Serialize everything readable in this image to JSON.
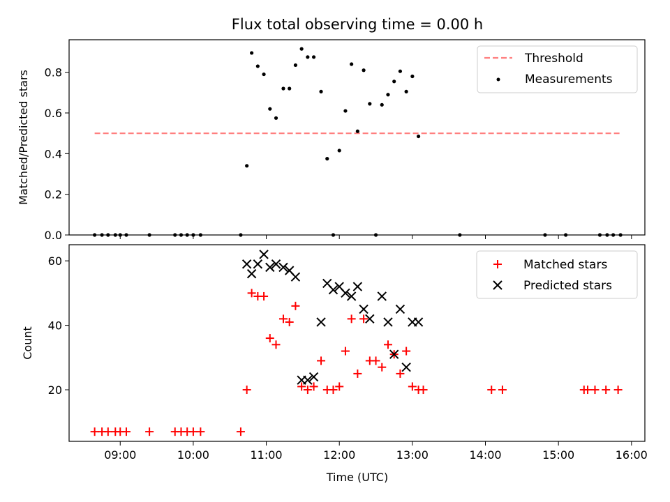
{
  "chart_data": [
    {
      "type": "scatter",
      "title": "Flux total observing time = 0.00 h",
      "xlabel": "",
      "ylabel": "Matched/Predicted stars",
      "xlim": [
        "08:18",
        "16:11"
      ],
      "ylim": [
        0,
        0.96
      ],
      "yticks": [
        0.0,
        0.2,
        0.4,
        0.6,
        0.8
      ],
      "ytick_labels": [
        "0.0",
        "0.2",
        "0.4",
        "0.6",
        "0.8"
      ],
      "legend": {
        "position": "top-right",
        "entries": [
          {
            "label": "Threshold",
            "marker": "dashed-line",
            "color": "#ff7f7f"
          },
          {
            "label": "Measurements",
            "marker": "dot",
            "color": "#000000"
          }
        ]
      },
      "threshold": {
        "name": "Threshold",
        "value": 0.5,
        "x_start": "08:39",
        "x_end": "15:51",
        "color": "#ff7f7f"
      },
      "series": [
        {
          "name": "Measurements",
          "color": "#000000",
          "x": [
            "08:39",
            "08:45",
            "08:50",
            "08:56",
            "09:00",
            "09:05",
            "09:24",
            "09:45",
            "09:50",
            "09:55",
            "10:00",
            "10:06",
            "10:39",
            "10:44",
            "10:48",
            "10:53",
            "10:58",
            "11:03",
            "11:08",
            "11:14",
            "11:19",
            "11:24",
            "11:29",
            "11:34",
            "11:39",
            "11:45",
            "11:50",
            "11:55",
            "12:00",
            "12:05",
            "12:10",
            "12:15",
            "12:20",
            "12:25",
            "12:30",
            "12:35",
            "12:40",
            "12:45",
            "12:50",
            "12:55",
            "13:00",
            "13:05",
            "13:39",
            "14:49",
            "15:06",
            "15:34",
            "15:40",
            "15:45",
            "15:51"
          ],
          "y": [
            0,
            0,
            0,
            0,
            0,
            0,
            0,
            0,
            0,
            0,
            0,
            0,
            0,
            0.34,
            0.895,
            0.83,
            0.79,
            0.62,
            0.575,
            0.72,
            0.72,
            0.835,
            0.915,
            0.875,
            0.875,
            0.705,
            0.375,
            0,
            0.415,
            0.61,
            0.84,
            0.51,
            0.81,
            0.645,
            0,
            0.64,
            0.69,
            0.755,
            0.805,
            0.705,
            0.78,
            0.485,
            0,
            0,
            0,
            0,
            0,
            0,
            0
          ]
        }
      ]
    },
    {
      "type": "scatter",
      "title": "",
      "xlabel": "Time (UTC)",
      "ylabel": "Count",
      "xlim": [
        "08:18",
        "16:11"
      ],
      "ylim": [
        4,
        65
      ],
      "yticks": [
        20,
        40,
        60
      ],
      "ytick_labels": [
        "20",
        "40",
        "60"
      ],
      "xticks": [
        "09:00",
        "10:00",
        "11:00",
        "12:00",
        "13:00",
        "14:00",
        "15:00",
        "16:00"
      ],
      "xtick_labels": [
        "09:00",
        "10:00",
        "11:00",
        "12:00",
        "13:00",
        "14:00",
        "15:00",
        "16:00"
      ],
      "legend": {
        "position": "top-right",
        "entries": [
          {
            "label": "Matched stars",
            "marker": "plus",
            "color": "#ff0000"
          },
          {
            "label": "Predicted stars",
            "marker": "x",
            "color": "#000000"
          }
        ]
      },
      "series": [
        {
          "name": "Matched stars",
          "marker": "plus",
          "color": "#ff0000",
          "x": [
            "08:39",
            "08:45",
            "08:50",
            "08:56",
            "09:00",
            "09:05",
            "09:24",
            "09:45",
            "09:50",
            "09:55",
            "10:00",
            "10:06",
            "10:39",
            "10:44",
            "10:48",
            "10:53",
            "10:58",
            "11:03",
            "11:08",
            "11:14",
            "11:19",
            "11:24",
            "11:29",
            "11:34",
            "11:39",
            "11:45",
            "11:50",
            "11:55",
            "12:00",
            "12:05",
            "12:10",
            "12:15",
            "12:20",
            "12:25",
            "12:30",
            "12:35",
            "12:40",
            "12:45",
            "12:50",
            "12:55",
            "13:00",
            "13:05",
            "13:09",
            "14:05",
            "14:14",
            "15:21",
            "15:24",
            "15:30",
            "15:39",
            "15:49"
          ],
          "y": [
            7,
            7,
            7,
            7,
            7,
            7,
            7,
            7,
            7,
            7,
            7,
            7,
            7,
            20,
            50,
            49,
            49,
            36,
            34,
            42,
            41,
            46,
            21,
            20,
            21,
            29,
            20,
            20,
            21,
            32,
            42,
            25,
            42,
            29,
            29,
            27,
            34,
            31,
            25,
            32,
            21,
            20,
            20,
            20,
            20,
            20,
            20,
            20,
            20,
            20
          ]
        },
        {
          "name": "Predicted stars",
          "marker": "x",
          "color": "#000000",
          "x": [
            "10:44",
            "10:48",
            "10:53",
            "10:58",
            "11:03",
            "11:08",
            "11:14",
            "11:19",
            "11:24",
            "11:29",
            "11:34",
            "11:39",
            "11:45",
            "11:50",
            "11:55",
            "12:00",
            "12:05",
            "12:10",
            "12:15",
            "12:20",
            "12:25",
            "12:35",
            "12:40",
            "12:45",
            "12:50",
            "12:55",
            "13:00",
            "13:05"
          ],
          "y": [
            59,
            56,
            59,
            62,
            58,
            59,
            58,
            57,
            55,
            23,
            23,
            24,
            41,
            53,
            51,
            52,
            50,
            49,
            52,
            45,
            42,
            49,
            41,
            31,
            45,
            27,
            41,
            41
          ]
        }
      ]
    }
  ]
}
